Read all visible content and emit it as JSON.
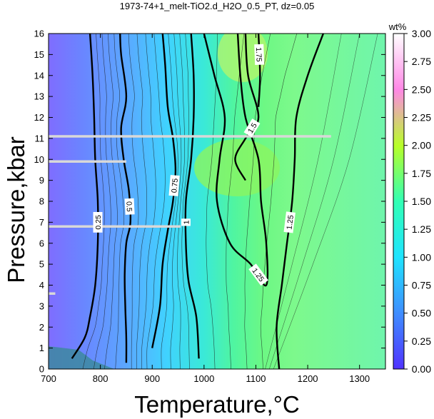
{
  "chart_data": {
    "type": "heatmap",
    "title": "1973-74+1_melt-TiO2.d_H2O_0.5_PT, dz=0.05",
    "xlabel": "Temperature,°C",
    "ylabel": "Pressure,kbar",
    "xlim": [
      700,
      1350
    ],
    "ylim": [
      0,
      16
    ],
    "xticks": [
      "700",
      "800",
      "900",
      "1000",
      "1100",
      "1200",
      "1300"
    ],
    "yticks": [
      "0",
      "1",
      "2",
      "3",
      "4",
      "5",
      "6",
      "7",
      "8",
      "9",
      "10",
      "11",
      "12",
      "13",
      "14",
      "15",
      "16"
    ],
    "colorbar": {
      "unit": "wt%",
      "min": 0,
      "max": 3,
      "ticks": [
        "0.00",
        "0.25",
        "0.50",
        "0.75",
        "1.00",
        "1.25",
        "1.50",
        "1.75",
        "2.00",
        "2.25",
        "2.50",
        "2.75",
        "3.00"
      ],
      "colors": [
        "#5033ff",
        "#3f8dff",
        "#1fe4ff",
        "#32ffb4",
        "#b8ff28",
        "#ff88e6",
        "#ffffff"
      ]
    },
    "contours": [
      {
        "level": 0.25,
        "label": "0.25",
        "points": [
          [
            745,
            0.5
          ],
          [
            770,
            1.5
          ],
          [
            780,
            2.5
          ],
          [
            790,
            4
          ],
          [
            795,
            6
          ],
          [
            795,
            8
          ],
          [
            790,
            10
          ],
          [
            788,
            12
          ],
          [
            785,
            14
          ],
          [
            780,
            16
          ]
        ]
      },
      {
        "level": 0.5,
        "label": "0.5",
        "points": [
          [
            850,
            0.3
          ],
          [
            850,
            1.5
          ],
          [
            848,
            3
          ],
          [
            847,
            4.5
          ],
          [
            850,
            6
          ],
          [
            858,
            7
          ],
          [
            855,
            8.5
          ],
          [
            845,
            10
          ],
          [
            840,
            11.5
          ],
          [
            850,
            13
          ],
          [
            840,
            15
          ],
          [
            838,
            16
          ]
        ]
      },
      {
        "level": 0.75,
        "label": "0.75",
        "points": [
          [
            900,
            1
          ],
          [
            915,
            3
          ],
          [
            920,
            5
          ],
          [
            930,
            6.6
          ],
          [
            940,
            8
          ],
          [
            945,
            9.5
          ],
          [
            940,
            11
          ],
          [
            930,
            12.5
          ],
          [
            925,
            14.5
          ],
          [
            920,
            16
          ]
        ]
      },
      {
        "level": 1.0,
        "label": "1",
        "points": [
          [
            990,
            0.5
          ],
          [
            985,
            2.5
          ],
          [
            970,
            4.2
          ],
          [
            965,
            6
          ],
          [
            965,
            8
          ],
          [
            975,
            10
          ],
          [
            980,
            12
          ],
          [
            980,
            14
          ],
          [
            975,
            16
          ]
        ]
      },
      {
        "level": 1.25,
        "label": "1.25",
        "points": [
          [
            1145,
            0
          ],
          [
            1140,
            2
          ],
          [
            1150,
            4
          ],
          [
            1160,
            6
          ],
          [
            1170,
            8
          ],
          [
            1175,
            10
          ],
          [
            1178,
            12
          ],
          [
            1200,
            14
          ],
          [
            1230,
            16
          ]
        ]
      },
      {
        "level": 1.25,
        "label": "1.25",
        "points": [
          [
            1000,
            16
          ],
          [
            1020,
            14
          ],
          [
            1040,
            12
          ],
          [
            1030,
            10
          ],
          [
            1025,
            8
          ],
          [
            1050,
            6
          ],
          [
            1090,
            5
          ],
          [
            1120,
            4
          ],
          [
            1120,
            6
          ],
          [
            1110,
            8
          ],
          [
            1105,
            10
          ],
          [
            1080,
            12
          ],
          [
            1070,
            14
          ],
          [
            1065,
            16
          ]
        ]
      },
      {
        "level": 1.5,
        "label": "1.5",
        "points": [
          [
            1080,
            16
          ],
          [
            1085,
            14
          ],
          [
            1105,
            12
          ],
          [
            1080,
            11
          ],
          [
            1060,
            10
          ],
          [
            1080,
            9
          ]
        ]
      },
      {
        "level": 1.75,
        "label": "1.75",
        "points": [
          [
            1105,
            16
          ],
          [
            1108,
            14
          ],
          [
            1105,
            12.5
          ]
        ]
      }
    ],
    "contour_labels": [
      "0.25",
      "0.25",
      "0.5",
      "0.5",
      "0.5",
      "0.5",
      "0.75",
      "0.75",
      "0.75",
      "0.75",
      "0.75",
      "0.75",
      "1",
      "1",
      "1",
      "1",
      "1.25",
      "1.25",
      "1.25",
      "1.25",
      "1.25",
      "1.25",
      "1.5",
      "1.5",
      "1.5",
      "1.5",
      "1.75",
      ".5",
      "75"
    ],
    "gaps": [
      {
        "y": 11.1,
        "x": [
          700,
          1245
        ]
      },
      {
        "y": 9.9,
        "x": [
          700,
          850
        ]
      },
      {
        "y": 6.8,
        "x": [
          700,
          955
        ]
      },
      {
        "y": 3.6,
        "x": [
          700,
          713
        ]
      }
    ],
    "grid": false
  }
}
